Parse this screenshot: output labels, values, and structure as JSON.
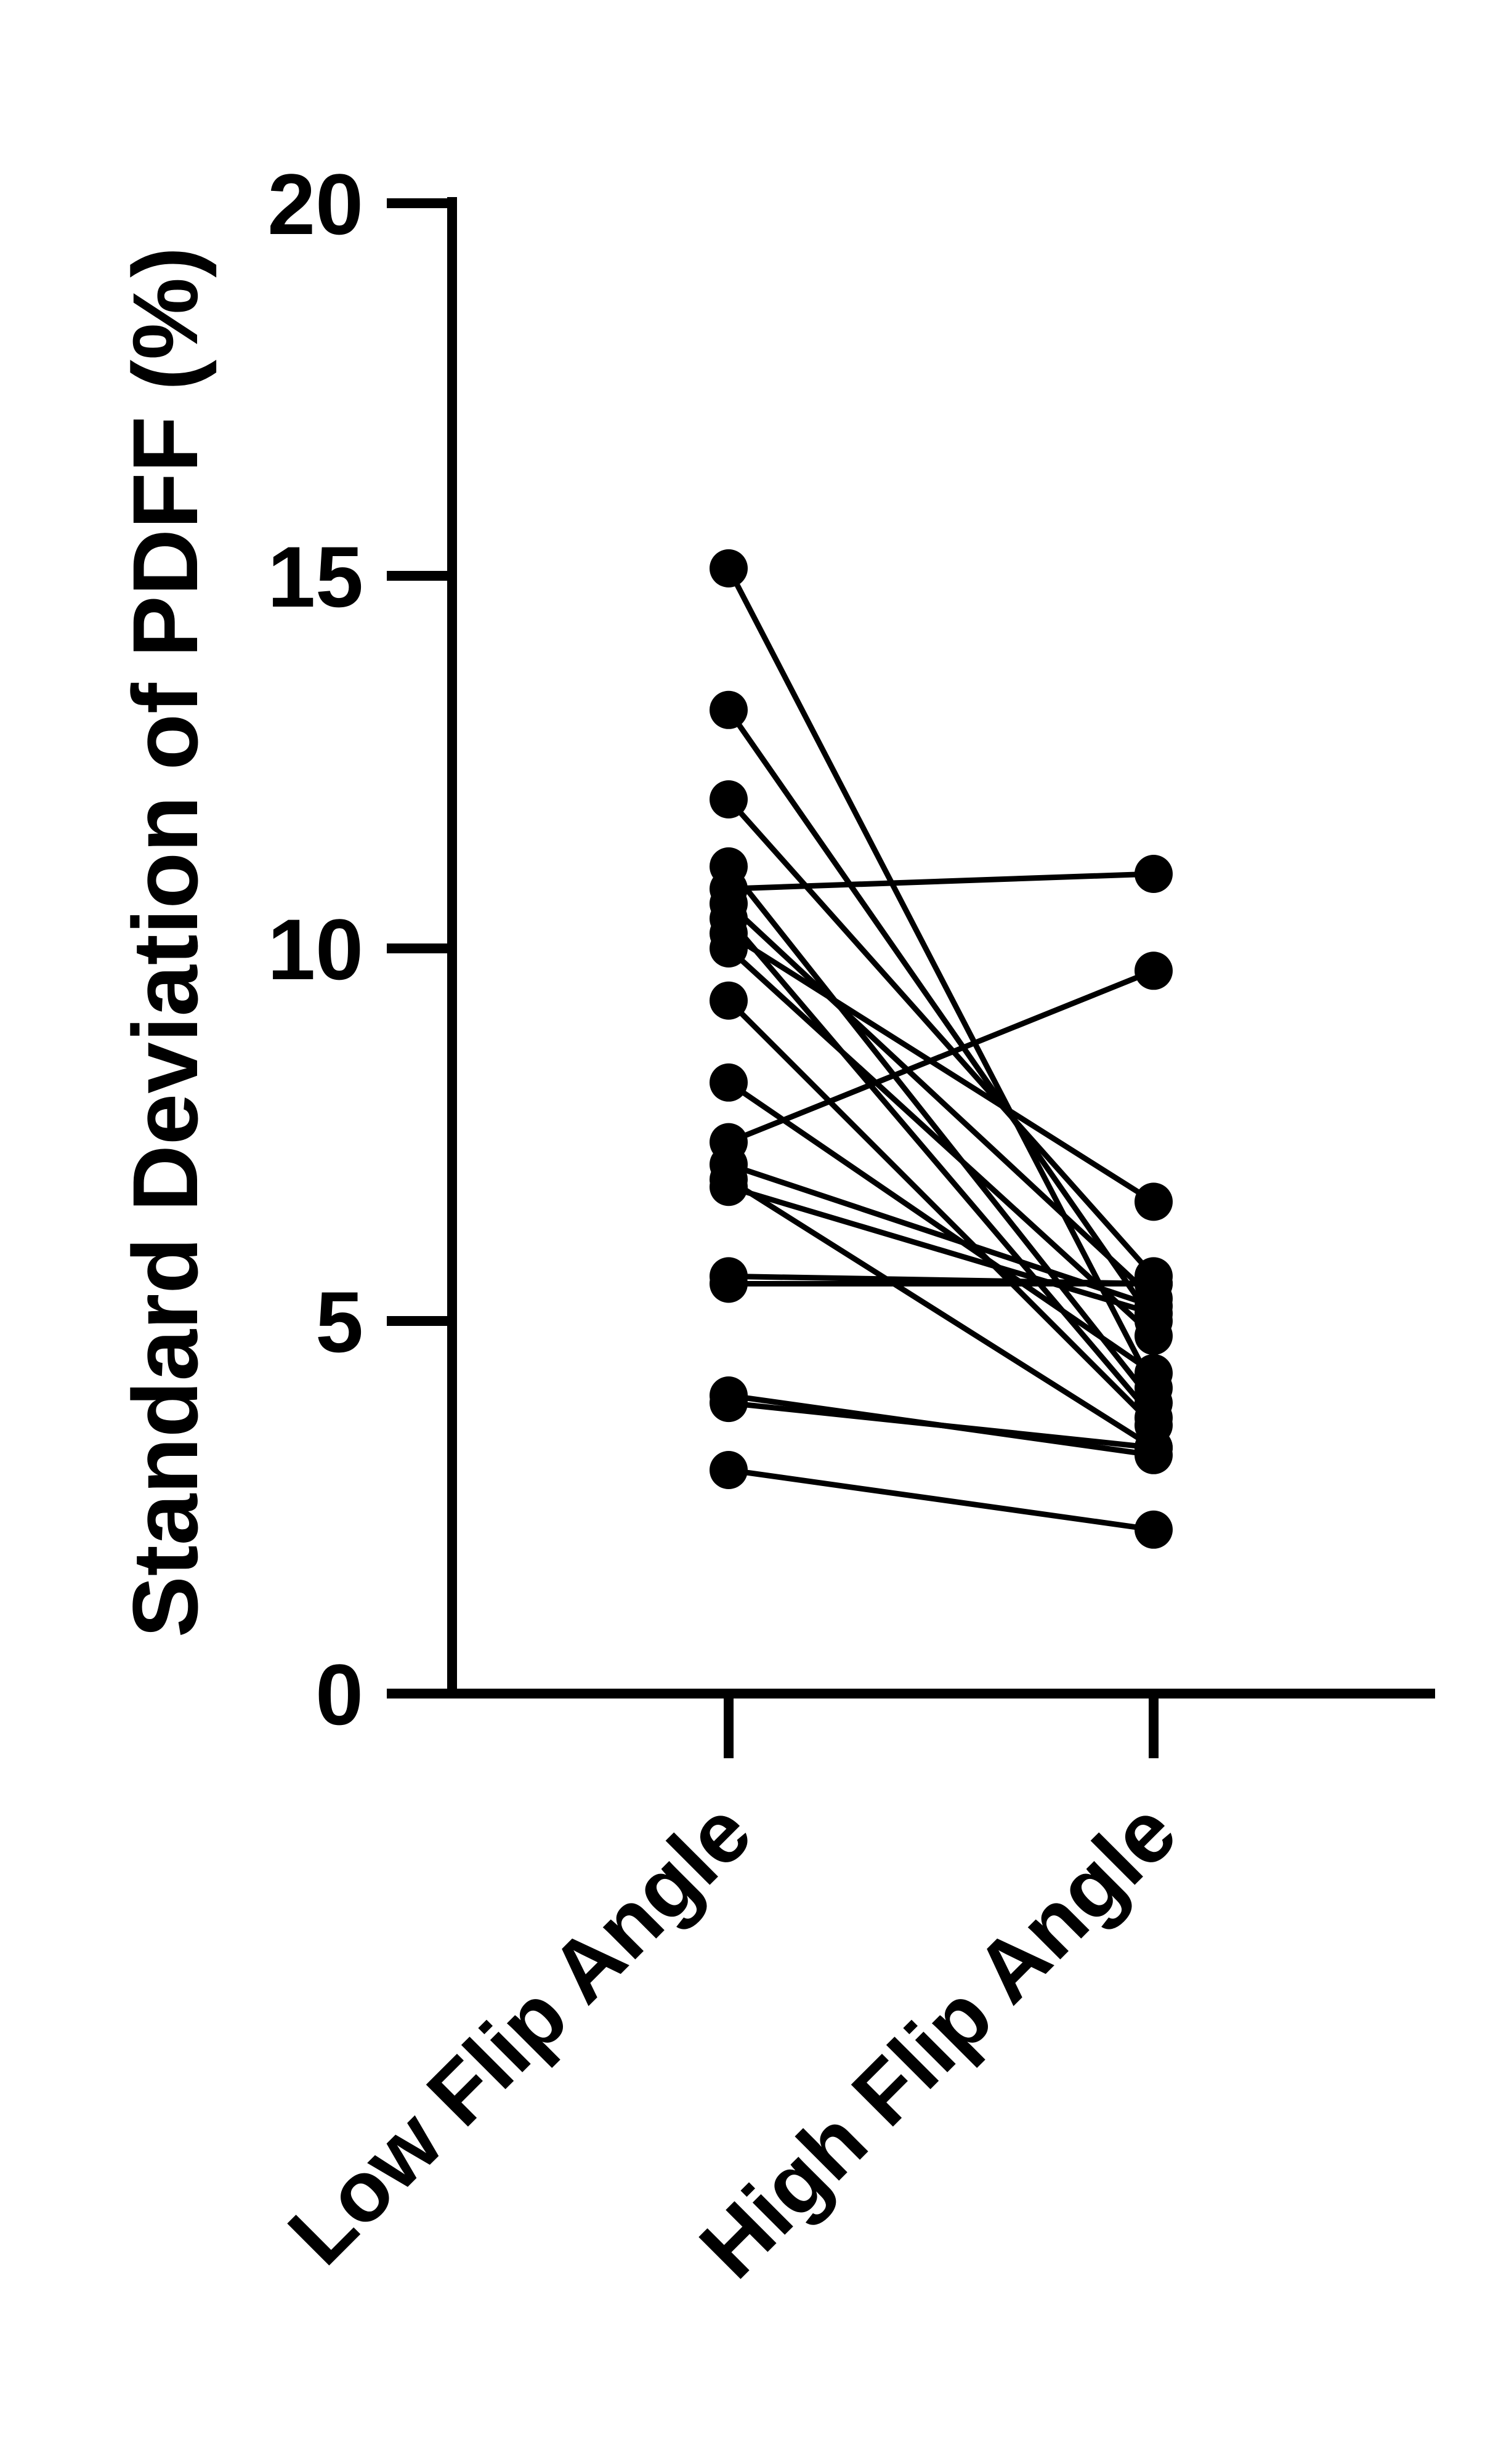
{
  "chart_data": {
    "type": "scatter",
    "subtype": "paired before-after",
    "title": "",
    "xlabel": "",
    "ylabel": "Standard Deviation of PDFF (%)",
    "categories": [
      "Low Flip Angle",
      "High Flip Angle"
    ],
    "ylim": [
      0,
      20
    ],
    "yticks": [
      "0",
      "5",
      "10",
      "15",
      "20"
    ],
    "grid": false,
    "legend": "none",
    "pairs": [
      [
        15.1,
        4.1
      ],
      [
        13.2,
        5.0
      ],
      [
        12.0,
        5.6
      ],
      [
        11.1,
        3.9
      ],
      [
        10.8,
        11.0
      ],
      [
        10.6,
        5.3
      ],
      [
        10.4,
        3.7
      ],
      [
        10.2,
        6.6
      ],
      [
        10.0,
        4.8
      ],
      [
        9.3,
        3.6
      ],
      [
        8.2,
        4.3
      ],
      [
        7.4,
        9.7
      ],
      [
        7.1,
        5.2
      ],
      [
        6.9,
        3.3
      ],
      [
        6.8,
        5.1
      ],
      [
        5.6,
        5.5
      ],
      [
        5.5,
        5.5
      ],
      [
        4.0,
        3.2
      ],
      [
        3.9,
        3.3
      ],
      [
        3.0,
        2.2
      ]
    ],
    "colors": {
      "point": "#000000",
      "line": "#000000",
      "axis": "#000000"
    }
  }
}
